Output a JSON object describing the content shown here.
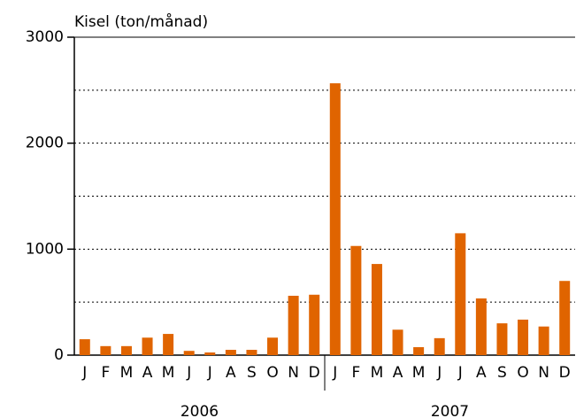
{
  "chart_data": {
    "type": "bar",
    "title": "Kisel (ton/månad)",
    "categories": [
      "J",
      "F",
      "M",
      "A",
      "M",
      "J",
      "J",
      "A",
      "S",
      "O",
      "N",
      "D",
      "J",
      "F",
      "M",
      "A",
      "M",
      "J",
      "J",
      "A",
      "S",
      "O",
      "N",
      "D"
    ],
    "groups": [
      {
        "label": "2006",
        "size": 12
      },
      {
        "label": "2007",
        "size": 12
      }
    ],
    "values": [
      150,
      85,
      85,
      165,
      200,
      40,
      25,
      50,
      50,
      165,
      560,
      570,
      2565,
      1030,
      860,
      240,
      75,
      160,
      1150,
      535,
      300,
      335,
      270,
      700
    ],
    "color": "#e06400",
    "ylim": [
      0,
      3000
    ],
    "yticks": [
      0,
      1000,
      2000,
      3000
    ],
    "ygrid": [
      500,
      1000,
      1500,
      2000,
      2500,
      3000
    ],
    "grid": true
  }
}
